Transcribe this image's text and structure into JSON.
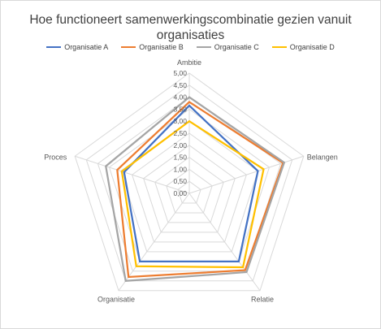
{
  "chart_data": {
    "type": "radar",
    "title": "Hoe functioneert samenwerkingscombinatie  gezien vanuit organisaties",
    "axes": [
      "Ambitie",
      "Belangen",
      "Relatie",
      "Organisatie",
      "Proces"
    ],
    "rlim": [
      0,
      5
    ],
    "ticks": [
      "0,00",
      "0,50",
      "1,00",
      "1,50",
      "2,00",
      "2,50",
      "3,00",
      "3,50",
      "4,00",
      "4,50",
      "5,00"
    ],
    "legend_position": "top",
    "series": [
      {
        "name": "Organisatie A",
        "color": "#4472C4",
        "values": [
          3.65,
          3.0,
          3.5,
          3.5,
          2.85
        ]
      },
      {
        "name": "Organisatie B",
        "color": "#ED7D31",
        "values": [
          3.8,
          4.1,
          3.95,
          4.3,
          3.15
        ]
      },
      {
        "name": "Organisatie C",
        "color": "#A5A5A5",
        "values": [
          4.0,
          4.15,
          4.05,
          4.5,
          3.65
        ]
      },
      {
        "name": "Organisatie D",
        "color": "#FFC000",
        "values": [
          3.0,
          3.25,
          3.8,
          3.75,
          2.95
        ]
      }
    ]
  }
}
